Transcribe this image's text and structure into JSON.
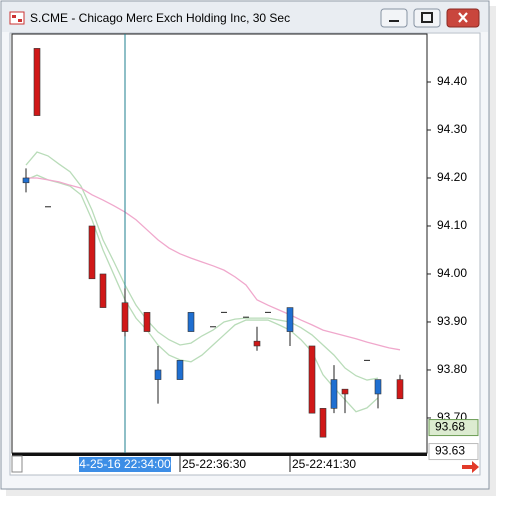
{
  "chart_data": {
    "type": "candlestick",
    "title": "S.CME - Chicago Merc Exch Holding Inc, 30 Sec",
    "categories": [
      null,
      null,
      null,
      null,
      null,
      null,
      null,
      null,
      null,
      "4-25-16 22:34:00",
      null,
      null,
      null,
      null,
      "25-22:36:30",
      null,
      null,
      null,
      null,
      null,
      null,
      null,
      null,
      null,
      "25-22:41:30",
      null,
      null,
      null,
      null,
      null,
      null,
      null,
      null,
      null,
      null
    ],
    "open": [
      94.19,
      94.47,
      94.14,
      null,
      null,
      null,
      94.1,
      94.0,
      null,
      93.94,
      null,
      93.92,
      93.78,
      null,
      93.78,
      93.88,
      null,
      93.89,
      93.92,
      null,
      93.91,
      93.86,
      93.92,
      null,
      93.88,
      null,
      93.85,
      93.72,
      93.72,
      93.76,
      null,
      93.82,
      93.75,
      null,
      93.78
    ],
    "high": [
      94.22,
      94.47,
      94.14,
      null,
      null,
      null,
      94.1,
      94.0,
      null,
      93.97,
      null,
      93.92,
      93.85,
      null,
      93.82,
      93.92,
      null,
      93.89,
      93.92,
      null,
      93.91,
      93.89,
      93.92,
      null,
      93.93,
      null,
      93.85,
      93.72,
      93.81,
      93.76,
      null,
      93.82,
      93.78,
      null,
      93.79
    ],
    "low": [
      94.17,
      94.33,
      94.14,
      null,
      null,
      null,
      93.99,
      93.93,
      null,
      93.87,
      null,
      93.88,
      93.73,
      null,
      93.78,
      93.88,
      null,
      93.89,
      93.92,
      null,
      93.91,
      93.84,
      93.92,
      null,
      93.85,
      null,
      93.71,
      93.66,
      93.71,
      93.71,
      null,
      93.82,
      93.72,
      null,
      93.74
    ],
    "close": [
      94.2,
      94.33,
      94.14,
      null,
      null,
      null,
      93.99,
      93.93,
      null,
      93.88,
      null,
      93.88,
      93.8,
      null,
      93.82,
      93.92,
      null,
      93.89,
      93.92,
      null,
      93.91,
      93.85,
      93.92,
      null,
      93.93,
      null,
      93.71,
      93.66,
      93.78,
      93.75,
      null,
      93.82,
      93.78,
      null,
      93.74
    ],
    "up_color": "#1f6fd1",
    "down_color": "#d01818",
    "lines": [
      {
        "color": "#b9dcb9",
        "values": [
          94.227,
          94.254,
          94.246,
          94.229,
          94.213,
          94.183,
          94.133,
          94.071,
          94.025,
          93.977,
          93.935,
          93.904,
          93.879,
          93.863,
          93.852,
          93.856,
          93.871,
          93.883,
          93.9,
          93.906,
          93.908,
          93.908,
          93.908,
          93.904,
          93.9,
          93.888,
          93.873,
          93.852,
          93.831,
          93.804,
          93.788,
          93.779,
          93.783,
          null,
          null
        ]
      },
      {
        "color": "#b9dcb9",
        "values": [
          94.196,
          94.206,
          94.196,
          94.19,
          94.183,
          94.165,
          94.113,
          94.05,
          93.998,
          93.946,
          93.908,
          93.883,
          93.852,
          93.831,
          93.821,
          93.817,
          93.831,
          93.852,
          93.873,
          93.894,
          93.904,
          93.904,
          93.904,
          93.894,
          93.883,
          93.863,
          93.838,
          93.79,
          93.763,
          93.738,
          93.713,
          93.721,
          93.742,
          null,
          null
        ]
      },
      {
        "color": "#f0a8cc",
        "values": [
          94.2,
          94.2,
          94.196,
          94.192,
          94.185,
          94.179,
          94.165,
          94.154,
          94.142,
          94.129,
          94.113,
          94.092,
          94.071,
          94.054,
          94.042,
          94.033,
          94.025,
          94.017,
          94.008,
          93.994,
          93.977,
          93.946,
          93.935,
          93.925,
          93.915,
          93.904,
          93.894,
          93.883,
          93.877,
          93.871,
          93.865,
          93.858,
          93.852,
          93.846,
          93.842
        ]
      }
    ],
    "crosshair_category": 9,
    "ylim": [
      93.627,
      94.5
    ],
    "yticks": [
      {
        "value": 94.4,
        "label": "94.40"
      },
      {
        "value": 94.3,
        "label": "94.30"
      },
      {
        "value": 94.2,
        "label": "94.20"
      },
      {
        "value": 94.1,
        "label": "94.10"
      },
      {
        "value": 94.0,
        "label": "94.00"
      },
      {
        "value": 93.9,
        "label": "93.90"
      },
      {
        "value": 93.8,
        "label": "93.80"
      },
      {
        "value": 93.7,
        "label": "93.70"
      }
    ],
    "price_markers": [
      93.68,
      93.63
    ]
  }
}
